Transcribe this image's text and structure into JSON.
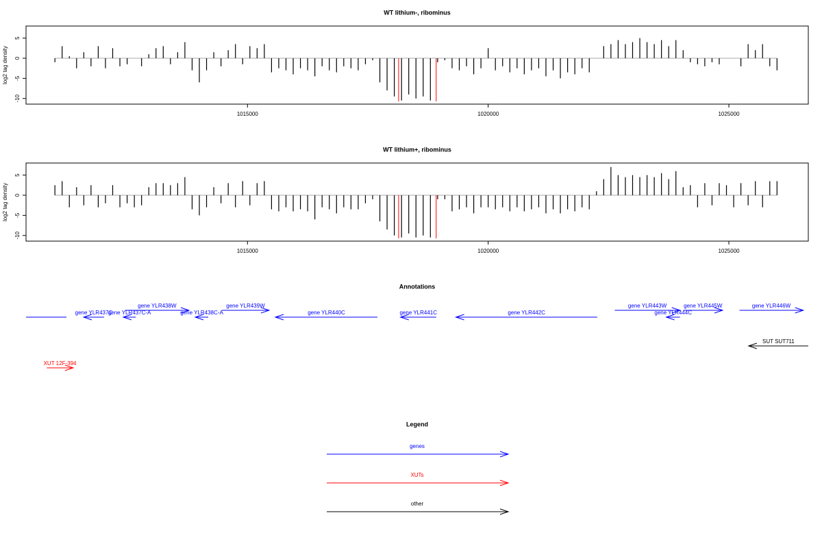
{
  "chart_data": [
    {
      "type": "bar",
      "title": "WT lithium-, ribominus",
      "ylabel": "log2 tag density",
      "xlim": [
        1010400,
        1026650
      ],
      "xticks": [
        1015000,
        1020000,
        1025000
      ],
      "ylim": [
        -11.4,
        8
      ],
      "yticks": [
        -10,
        -5,
        0,
        5
      ],
      "color": "#000000",
      "markers": [
        1018140,
        1018920
      ],
      "marker_color": "#ff0000",
      "x": [
        1011000,
        1011150,
        1011300,
        1011450,
        1011600,
        1011750,
        1011900,
        1012050,
        1012200,
        1012350,
        1012500,
        1012650,
        1012800,
        1012950,
        1013100,
        1013250,
        1013400,
        1013550,
        1013700,
        1013850,
        1014000,
        1014150,
        1014300,
        1014450,
        1014600,
        1014750,
        1014900,
        1015050,
        1015200,
        1015350,
        1015500,
        1015650,
        1015800,
        1015950,
        1016100,
        1016250,
        1016400,
        1016550,
        1016700,
        1016850,
        1017000,
        1017150,
        1017300,
        1017450,
        1017600,
        1017750,
        1017900,
        1018050,
        1018200,
        1018350,
        1018500,
        1018650,
        1018800,
        1018950,
        1019100,
        1019250,
        1019400,
        1019550,
        1019700,
        1019850,
        1020000,
        1020150,
        1020300,
        1020450,
        1020600,
        1020750,
        1020900,
        1021050,
        1021200,
        1021350,
        1021500,
        1021650,
        1021800,
        1021950,
        1022100,
        1022250,
        1022400,
        1022550,
        1022700,
        1022850,
        1023000,
        1023150,
        1023300,
        1023450,
        1023600,
        1023750,
        1023900,
        1024050,
        1024200,
        1024350,
        1024500,
        1024650,
        1024800,
        1024950,
        1025100,
        1025250,
        1025400,
        1025550,
        1025700,
        1025850,
        1026000
      ],
      "values": [
        -1,
        3,
        0.5,
        -2.5,
        1.5,
        -2,
        3,
        -2.5,
        2.5,
        -2,
        -1.5,
        0,
        -2,
        1,
        2.5,
        3,
        -1.5,
        1.5,
        4,
        -3,
        -6,
        -3,
        1.5,
        -2,
        2,
        3.5,
        -1.5,
        3,
        2.5,
        3.5,
        -3.5,
        -2.5,
        -3,
        -4,
        -2.5,
        -3,
        -4.5,
        -2,
        -3,
        -3.5,
        -2,
        -2.5,
        -3,
        -1.5,
        -0.5,
        -6,
        -8,
        -9.5,
        -10.5,
        -9,
        -10,
        -9.5,
        -10.5,
        -1,
        -0.5,
        -2.5,
        -3,
        -2,
        -4,
        -2.5,
        2.5,
        -3,
        -2,
        -3.5,
        -2.5,
        -4,
        -3,
        -2.5,
        -4.5,
        -3,
        -5,
        -3.5,
        -4,
        -2.5,
        -3.5,
        0,
        3,
        3.5,
        4.5,
        3.5,
        4,
        5,
        4,
        3.5,
        4.5,
        3,
        4.5,
        2,
        -1,
        -1.5,
        -2,
        -1,
        -1.5,
        0,
        0,
        -2,
        3.5,
        2,
        3.5,
        -2,
        -3
      ]
    },
    {
      "type": "bar",
      "title": "WT lithium+, ribominus",
      "ylabel": "log2 tag density",
      "xlim": [
        1010400,
        1026650
      ],
      "xticks": [
        1015000,
        1020000,
        1025000
      ],
      "ylim": [
        -11.4,
        8
      ],
      "yticks": [
        -10,
        -5,
        0,
        5
      ],
      "color": "#000000",
      "markers": [
        1018140,
        1018920
      ],
      "marker_color": "#ff0000",
      "x": [
        1011000,
        1011150,
        1011300,
        1011450,
        1011600,
        1011750,
        1011900,
        1012050,
        1012200,
        1012350,
        1012500,
        1012650,
        1012800,
        1012950,
        1013100,
        1013250,
        1013400,
        1013550,
        1013700,
        1013850,
        1014000,
        1014150,
        1014300,
        1014450,
        1014600,
        1014750,
        1014900,
        1015050,
        1015200,
        1015350,
        1015500,
        1015650,
        1015800,
        1015950,
        1016100,
        1016250,
        1016400,
        1016550,
        1016700,
        1016850,
        1017000,
        1017150,
        1017300,
        1017450,
        1017600,
        1017750,
        1017900,
        1018050,
        1018200,
        1018350,
        1018500,
        1018650,
        1018800,
        1018950,
        1019100,
        1019250,
        1019400,
        1019550,
        1019700,
        1019850,
        1020000,
        1020150,
        1020300,
        1020450,
        1020600,
        1020750,
        1020900,
        1021050,
        1021200,
        1021350,
        1021500,
        1021650,
        1021800,
        1021950,
        1022100,
        1022250,
        1022400,
        1022550,
        1022700,
        1022850,
        1023000,
        1023150,
        1023300,
        1023450,
        1023600,
        1023750,
        1023900,
        1024050,
        1024200,
        1024350,
        1024500,
        1024650,
        1024800,
        1024950,
        1025100,
        1025250,
        1025400,
        1025550,
        1025700,
        1025850,
        1026000
      ],
      "values": [
        2.5,
        3.5,
        -3,
        2,
        -2.5,
        2.5,
        -3,
        -2,
        2.5,
        -3,
        -2,
        -3,
        -2.5,
        2,
        3,
        3,
        2.5,
        3,
        4.5,
        -3.5,
        -5,
        -3,
        2,
        -2,
        3,
        -3,
        3.5,
        -2.5,
        3,
        3.5,
        -3.5,
        -4,
        -3,
        -4,
        -3.5,
        -4,
        -6,
        -3,
        -3.5,
        -4.5,
        -3,
        -3.5,
        -3.5,
        -2,
        -1,
        -6.5,
        -8.5,
        -10,
        -10.5,
        -9.5,
        -10.5,
        -10,
        -10.5,
        -1,
        -1,
        -4,
        -3.5,
        -3,
        -4.5,
        -3,
        -3,
        -3.5,
        -3,
        -4,
        -3,
        -4,
        -3.5,
        -3,
        -4.5,
        -3.5,
        -4.5,
        -3.5,
        -4,
        -3,
        -3.5,
        1,
        4,
        7,
        5,
        4.5,
        5,
        4.5,
        5,
        4.5,
        5.5,
        4,
        6,
        2,
        2.5,
        -3,
        3,
        -2.5,
        3,
        2.5,
        -3,
        3,
        -2.5,
        3.5,
        -3,
        3.5,
        3.5
      ]
    }
  ],
  "annotations": {
    "title": "Annotations",
    "features": [
      {
        "label": null,
        "start": 1010400,
        "end": 1011240,
        "strand": "-",
        "color": "#0000ff"
      },
      {
        "label": "gene YLR437C",
        "start": 1011595,
        "end": 1012020,
        "strand": "-",
        "color": "#0000ff"
      },
      {
        "label": "gene YLR437C-A",
        "start": 1012420,
        "end": 1012680,
        "strand": "-",
        "color": "#0000ff"
      },
      {
        "label": "gene YLR438W",
        "start": 1012460,
        "end": 1013785,
        "strand": "+",
        "color": "#0000ff"
      },
      {
        "label": "gene YLR438C-A",
        "start": 1013915,
        "end": 1014185,
        "strand": "-",
        "color": "#0000ff"
      },
      {
        "label": "gene YLR439W",
        "start": 1014470,
        "end": 1015450,
        "strand": "+",
        "color": "#0000ff"
      },
      {
        "label": "gene YLR440C",
        "start": 1015580,
        "end": 1017700,
        "strand": "-",
        "color": "#0000ff"
      },
      {
        "label": "gene YLR441C",
        "start": 1018180,
        "end": 1018920,
        "strand": "-",
        "color": "#0000ff"
      },
      {
        "label": "gene YLR442C",
        "start": 1019330,
        "end": 1022265,
        "strand": "-",
        "color": "#0000ff"
      },
      {
        "label": "gene YLR443W",
        "start": 1022630,
        "end": 1023985,
        "strand": "+",
        "color": "#0000ff"
      },
      {
        "label": "gene YLR444C",
        "start": 1023700,
        "end": 1023985,
        "strand": "-",
        "color": "#0000ff"
      },
      {
        "label": "gene YLR445W",
        "start": 1024055,
        "end": 1024870,
        "strand": "+",
        "color": "#0000ff"
      },
      {
        "label": "gene YLR446W",
        "start": 1025220,
        "end": 1026545,
        "strand": "+",
        "color": "#0000ff"
      },
      {
        "label": "SUT SUT711",
        "start": 1025410,
        "end": 1026650,
        "strand": "-",
        "color": "#000000"
      },
      {
        "label": "XUT 12F-394",
        "start": 1010830,
        "end": 1011380,
        "strand": "+",
        "color": "#ff0000"
      }
    ]
  },
  "legend": {
    "title": "Legend",
    "entries": [
      {
        "label": "genes",
        "color": "#0000ff"
      },
      {
        "label": "XUTs",
        "color": "#ff0000"
      },
      {
        "label": "other",
        "color": "#000000"
      }
    ]
  }
}
